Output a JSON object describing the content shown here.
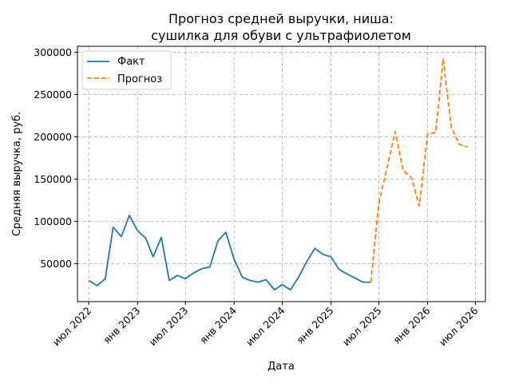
{
  "chart_data": {
    "type": "line",
    "title": [
      "Прогноз средней выручки, ниша:",
      "сушилка для обуви с ультрафиолетом"
    ],
    "xlabel": "Дата",
    "ylabel": "Средняя выручка, руб.",
    "ylim": [
      5000,
      307000
    ],
    "xlim": [
      "2022-05-19",
      "2026-08-08"
    ],
    "yticks": [
      50000,
      100000,
      150000,
      200000,
      250000,
      300000
    ],
    "xticks": [
      {
        "date": "2022-07-01",
        "label": "июл 2022"
      },
      {
        "date": "2023-01-01",
        "label": "янв 2023"
      },
      {
        "date": "2023-07-01",
        "label": "июл 2023"
      },
      {
        "date": "2024-01-01",
        "label": "янв 2024"
      },
      {
        "date": "2024-07-01",
        "label": "июл 2024"
      },
      {
        "date": "2025-01-01",
        "label": "янв 2025"
      },
      {
        "date": "2025-07-01",
        "label": "июл 2025"
      },
      {
        "date": "2026-01-01",
        "label": "янв 2026"
      },
      {
        "date": "2026-07-01",
        "label": "июл 2026"
      }
    ],
    "grid": true,
    "legend_position": "top-left",
    "series": [
      {
        "name": "Факт",
        "color": "#1f77b4",
        "style": "solid",
        "points": [
          [
            "2022-07-01",
            30000
          ],
          [
            "2022-08-01",
            24000
          ],
          [
            "2022-09-01",
            32000
          ],
          [
            "2022-10-01",
            93000
          ],
          [
            "2022-11-01",
            82000
          ],
          [
            "2022-12-01",
            107000
          ],
          [
            "2023-01-01",
            89000
          ],
          [
            "2023-02-01",
            80000
          ],
          [
            "2023-03-01",
            58000
          ],
          [
            "2023-04-01",
            81000
          ],
          [
            "2023-05-01",
            30000
          ],
          [
            "2023-06-01",
            36000
          ],
          [
            "2023-07-01",
            32000
          ],
          [
            "2023-08-01",
            39000
          ],
          [
            "2023-09-01",
            44000
          ],
          [
            "2023-10-01",
            46000
          ],
          [
            "2023-11-01",
            77000
          ],
          [
            "2023-12-01",
            87000
          ],
          [
            "2024-01-01",
            55000
          ],
          [
            "2024-02-01",
            34000
          ],
          [
            "2024-03-01",
            30000
          ],
          [
            "2024-04-01",
            28000
          ],
          [
            "2024-05-01",
            31000
          ],
          [
            "2024-06-01",
            19000
          ],
          [
            "2024-07-01",
            25000
          ],
          [
            "2024-08-01",
            19000
          ],
          [
            "2024-09-01",
            34000
          ],
          [
            "2024-10-01",
            52000
          ],
          [
            "2024-11-01",
            68000
          ],
          [
            "2024-12-01",
            61000
          ],
          [
            "2025-01-01",
            58000
          ],
          [
            "2025-02-01",
            43000
          ],
          [
            "2025-03-01",
            38000
          ],
          [
            "2025-04-01",
            33000
          ],
          [
            "2025-05-01",
            28000
          ],
          [
            "2025-06-01",
            28000
          ]
        ]
      },
      {
        "name": "Прогноз",
        "color": "#ff7f0e",
        "style": "dashed",
        "points": [
          [
            "2025-06-01",
            28000
          ],
          [
            "2025-07-01",
            122000
          ],
          [
            "2025-08-01",
            163000
          ],
          [
            "2025-09-01",
            206000
          ],
          [
            "2025-10-01",
            160000
          ],
          [
            "2025-11-01",
            152000
          ],
          [
            "2025-12-01",
            118000
          ],
          [
            "2026-01-01",
            203000
          ],
          [
            "2026-02-01",
            205000
          ],
          [
            "2026-03-01",
            292000
          ],
          [
            "2026-04-01",
            211000
          ],
          [
            "2026-05-01",
            191000
          ],
          [
            "2026-06-01",
            188000
          ]
        ]
      }
    ]
  }
}
